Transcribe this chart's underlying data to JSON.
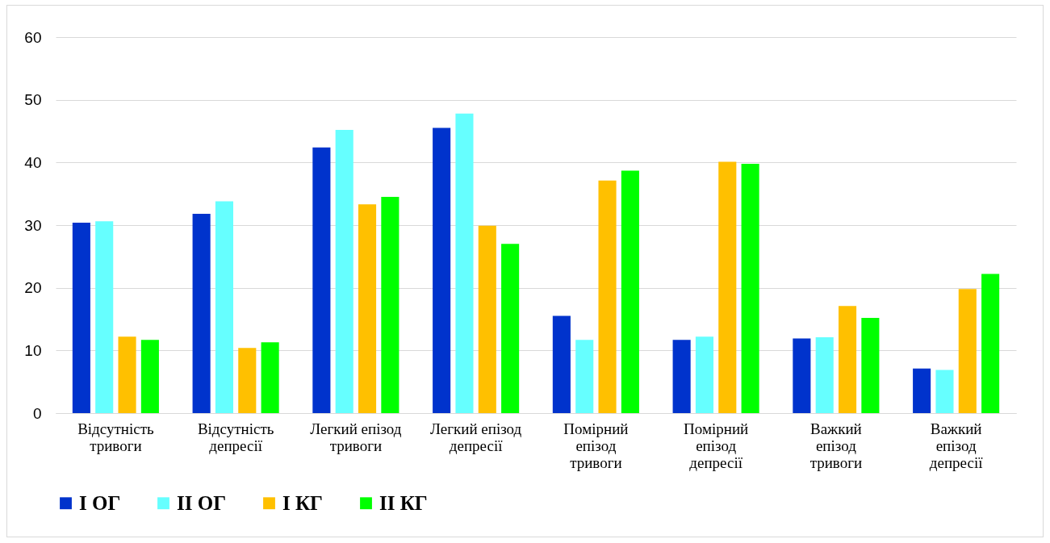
{
  "chart_data": {
    "type": "bar",
    "categories": [
      "Відсутність\nтривоги",
      "Відсутність\nдепресії",
      "Легкий епізод\nтривоги",
      "Легкий епізод\nдепресії",
      "Помірний\nепізод\nтривоги",
      "Помірний\nепізод\nдепресії",
      "Важкий\nепізод\nтривоги",
      "Важкий\nепізод\nдепресії"
    ],
    "series": [
      {
        "name": "I ОГ",
        "color": "#0033cc",
        "values": [
          30.4,
          31.8,
          42.4,
          45.5,
          15.5,
          11.7,
          11.9,
          7.1
        ]
      },
      {
        "name": "II ОГ",
        "color": "#66ffff",
        "values": [
          30.6,
          33.8,
          45.2,
          47.8,
          11.7,
          12.2,
          12.1,
          6.9
        ]
      },
      {
        "name": "I КГ",
        "color": "#ffc000",
        "values": [
          12.2,
          10.4,
          33.3,
          29.9,
          37.1,
          40.1,
          17.1,
          19.8
        ]
      },
      {
        "name": "II КГ",
        "color": "#00ff00",
        "values": [
          11.7,
          11.3,
          34.5,
          27.0,
          38.7,
          39.8,
          15.2,
          22.2
        ]
      }
    ],
    "ylim": [
      0,
      60
    ],
    "yticks": [
      0,
      10,
      20,
      30,
      40,
      50,
      60
    ],
    "grid": "y",
    "legend": "bottom"
  }
}
